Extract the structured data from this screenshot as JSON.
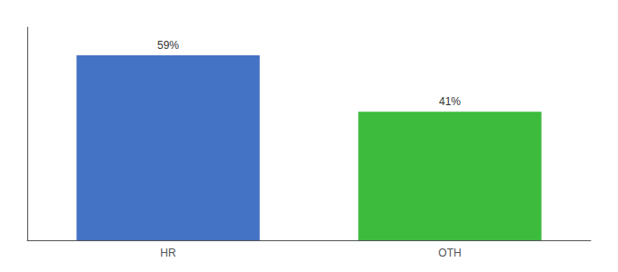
{
  "chart_data": {
    "type": "bar",
    "categories": [
      "HR",
      "OTH"
    ],
    "values": [
      59,
      41
    ],
    "value_labels": [
      "59%",
      "41%"
    ],
    "colors": [
      "#4472c4",
      "#3dbb3d"
    ],
    "ylim": [
      0,
      68
    ],
    "grid": false,
    "data_labels": true,
    "tick_labels": "x"
  }
}
